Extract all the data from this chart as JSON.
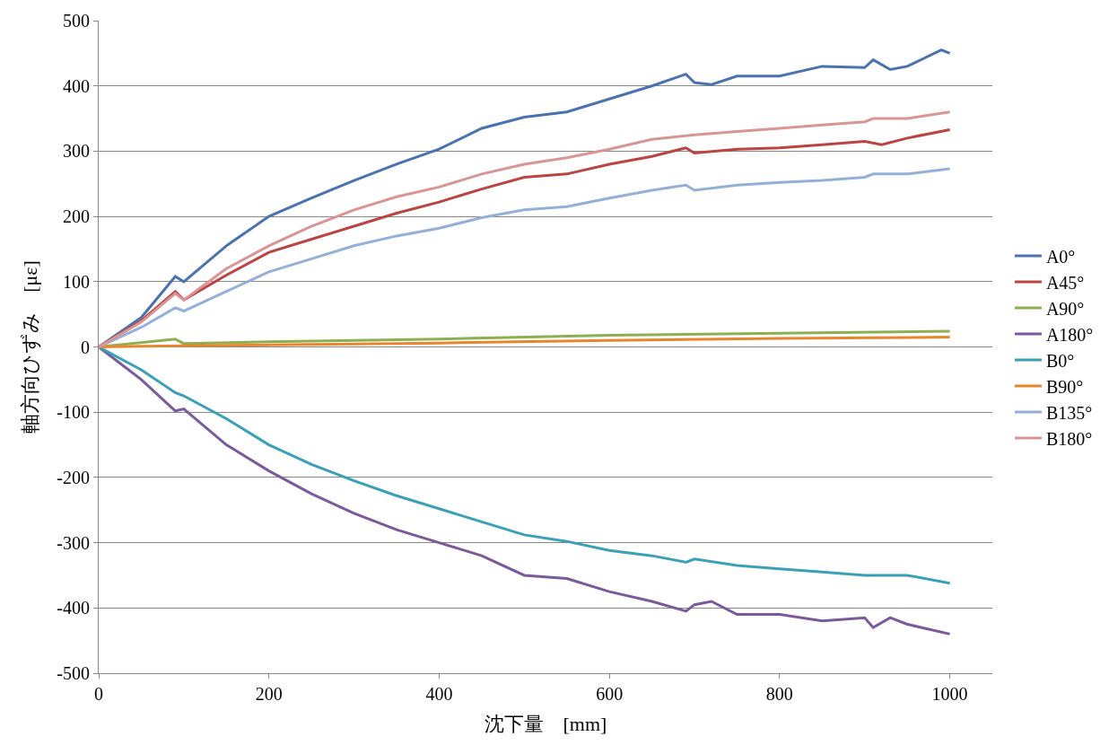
{
  "chart_data": {
    "type": "line",
    "xlabel": "沈下量　[mm]",
    "ylabel": "軸方向ひずみ　[με]",
    "xlim": [
      0,
      1050
    ],
    "xticks": [
      0,
      200,
      400,
      600,
      800,
      1000
    ],
    "ylim": [
      -500,
      500
    ],
    "yticks": [
      -500,
      -400,
      -300,
      -200,
      -100,
      0,
      100,
      200,
      300,
      400,
      500
    ],
    "grid": "y",
    "legend": "right",
    "marker": "none",
    "line_style": "solid",
    "series": [
      {
        "name": "A0°",
        "color": "#4a72b0",
        "x": [
          0,
          50,
          90,
          100,
          150,
          200,
          250,
          300,
          350,
          400,
          450,
          500,
          550,
          600,
          650,
          690,
          700,
          720,
          750,
          800,
          850,
          900,
          910,
          930,
          950,
          990,
          1000
        ],
        "values": [
          0,
          45,
          108,
          100,
          155,
          200,
          228,
          255,
          280,
          303,
          335,
          352,
          360,
          380,
          400,
          418,
          405,
          402,
          415,
          415,
          430,
          428,
          440,
          425,
          430,
          455,
          450
        ]
      },
      {
        "name": "A45°",
        "color": "#b94441",
        "x": [
          0,
          50,
          90,
          100,
          150,
          200,
          250,
          300,
          350,
          400,
          450,
          500,
          550,
          600,
          650,
          690,
          700,
          750,
          800,
          850,
          900,
          920,
          950,
          1000
        ],
        "values": [
          0,
          40,
          85,
          72,
          110,
          145,
          165,
          185,
          205,
          222,
          242,
          260,
          265,
          280,
          292,
          305,
          297,
          303,
          305,
          310,
          315,
          310,
          320,
          333
        ]
      },
      {
        "name": "A90°",
        "color": "#8cb050",
        "x": [
          0,
          90,
          100,
          200,
          400,
          600,
          800,
          1000
        ],
        "values": [
          0,
          12,
          5,
          8,
          12,
          18,
          21,
          24
        ]
      },
      {
        "name": "A180°",
        "color": "#7a5a9c",
        "x": [
          0,
          50,
          90,
          100,
          150,
          200,
          250,
          300,
          350,
          400,
          450,
          500,
          550,
          600,
          650,
          690,
          700,
          720,
          750,
          800,
          850,
          900,
          910,
          930,
          950,
          1000
        ],
        "values": [
          0,
          -50,
          -98,
          -95,
          -150,
          -190,
          -225,
          -255,
          -280,
          -300,
          -320,
          -350,
          -355,
          -375,
          -390,
          -405,
          -395,
          -390,
          -410,
          -410,
          -420,
          -415,
          -430,
          -415,
          -425,
          -440
        ]
      },
      {
        "name": "B0°",
        "color": "#3aa0b8",
        "x": [
          0,
          50,
          90,
          100,
          150,
          200,
          250,
          300,
          350,
          400,
          450,
          500,
          550,
          600,
          650,
          690,
          700,
          750,
          800,
          850,
          900,
          950,
          1000
        ],
        "values": [
          0,
          -35,
          -70,
          -75,
          -110,
          -150,
          -180,
          -205,
          -228,
          -248,
          -268,
          -288,
          -298,
          -312,
          -320,
          -330,
          -325,
          -335,
          -340,
          -345,
          -350,
          -350,
          -362
        ]
      },
      {
        "name": "B90°",
        "color": "#e8862e",
        "x": [
          0,
          50,
          200,
          400,
          600,
          800,
          1000
        ],
        "values": [
          0,
          1,
          3,
          6,
          10,
          13,
          15
        ]
      },
      {
        "name": "B135°",
        "color": "#95b0d8",
        "x": [
          0,
          50,
          90,
          100,
          150,
          200,
          250,
          300,
          350,
          400,
          450,
          500,
          550,
          600,
          650,
          690,
          700,
          750,
          800,
          850,
          900,
          910,
          950,
          1000
        ],
        "values": [
          0,
          30,
          60,
          55,
          85,
          115,
          135,
          155,
          170,
          182,
          198,
          210,
          215,
          228,
          240,
          248,
          240,
          248,
          252,
          255,
          260,
          265,
          265,
          273
        ]
      },
      {
        "name": "B180°",
        "color": "#d89594",
        "x": [
          0,
          50,
          90,
          100,
          150,
          200,
          250,
          300,
          350,
          400,
          450,
          500,
          550,
          600,
          650,
          700,
          750,
          800,
          850,
          900,
          910,
          950,
          1000
        ],
        "values": [
          0,
          38,
          82,
          72,
          120,
          155,
          185,
          210,
          230,
          245,
          265,
          280,
          290,
          303,
          318,
          325,
          330,
          335,
          340,
          345,
          350,
          350,
          360
        ]
      }
    ]
  }
}
